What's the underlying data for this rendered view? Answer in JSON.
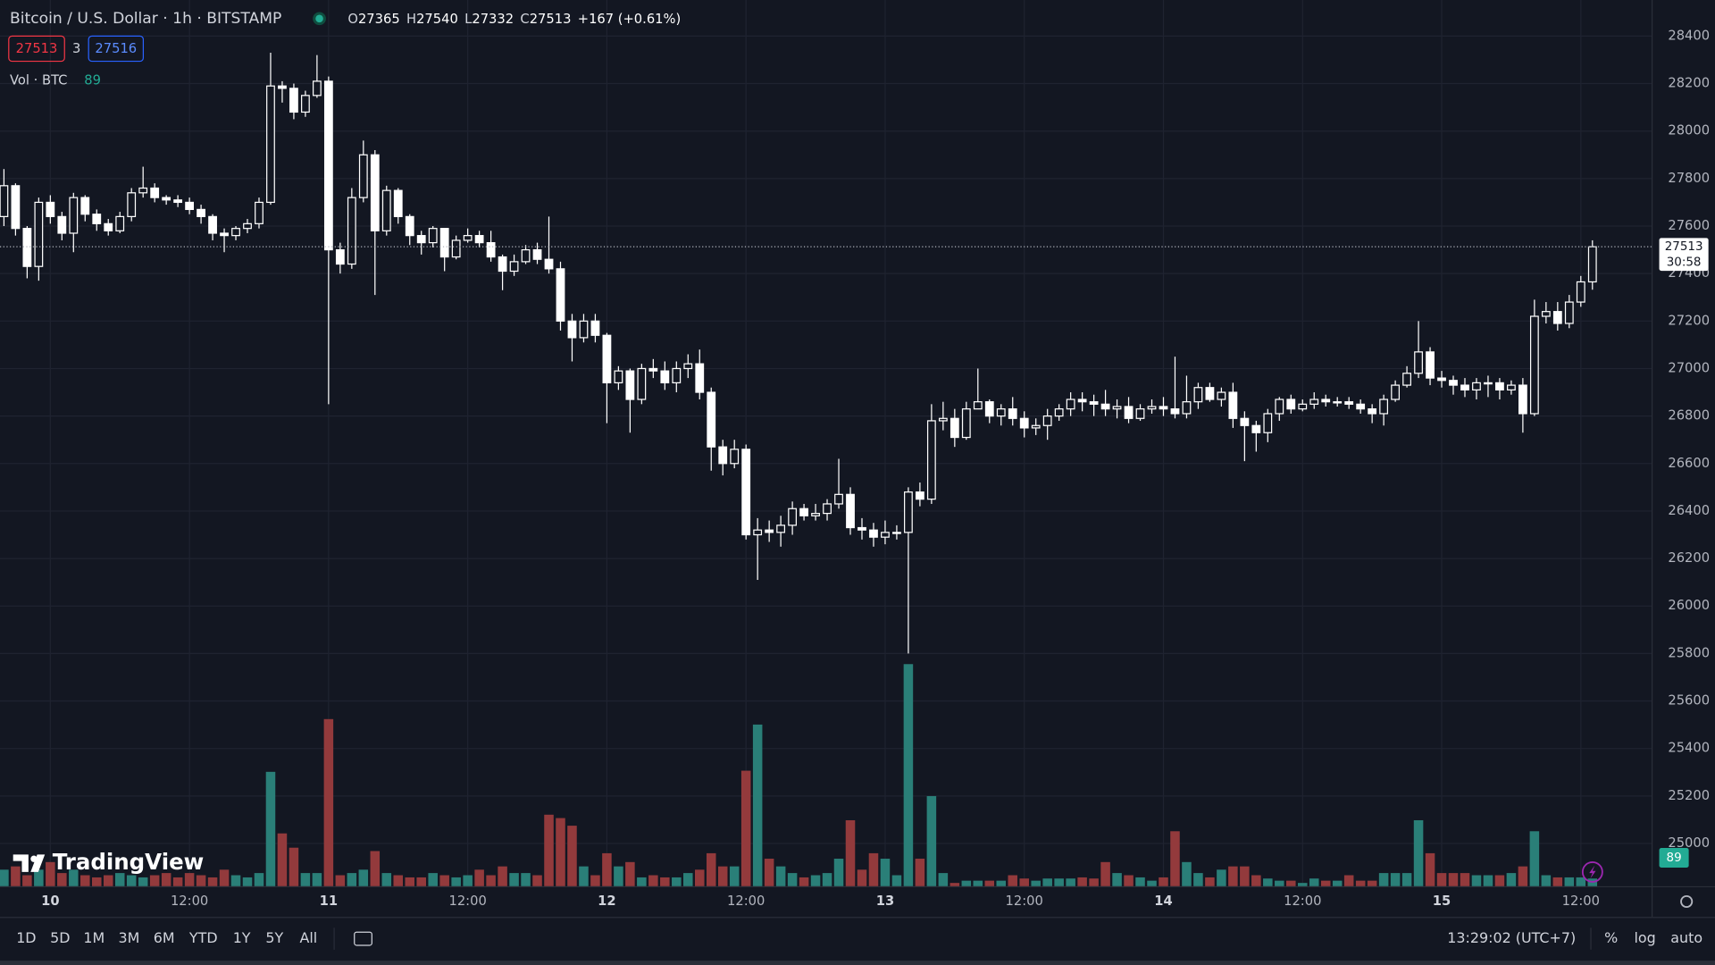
{
  "chart_data": {
    "type": "candlestick",
    "title": "Bitcoin / U.S. Dollar · 1h · BITSTAMP",
    "ohlc_labels": [
      "O",
      "H",
      "L",
      "C"
    ],
    "change": "+167 (+0.61%)",
    "bid": 27513,
    "spread": 3,
    "ask": 27516,
    "volume_label": "Vol · BTC",
    "countdown": "30:58",
    "candle_color": "#ffffff",
    "volume_up_color": "#2a7f78",
    "volume_down_color": "#933a3c",
    "grid": true,
    "xlim": [
      -0.34,
      142.1
    ],
    "xticks": [
      {
        "value": 4,
        "label": "10"
      },
      {
        "value": 16,
        "label": "12:00"
      },
      {
        "value": 28,
        "label": "11"
      },
      {
        "value": 40,
        "label": "12:00"
      },
      {
        "value": 52,
        "label": "12"
      },
      {
        "value": 64,
        "label": "12:00"
      },
      {
        "value": 76,
        "label": "13"
      },
      {
        "value": 88,
        "label": "12:00"
      },
      {
        "value": 100,
        "label": "14"
      },
      {
        "value": 112,
        "label": "12:00"
      },
      {
        "value": 124,
        "label": "15"
      },
      {
        "value": 136,
        "label": "12:00"
      }
    ],
    "ylim": [
      24820,
      28552
    ],
    "yticks": [
      25000,
      25200,
      25400,
      25600,
      25800,
      26000,
      26200,
      26400,
      26600,
      26800,
      27000,
      27200,
      27400,
      27600,
      27800,
      28000,
      28200,
      28400
    ],
    "open": [
      27640,
      27770,
      27590,
      27430,
      27700,
      27640,
      27570,
      27720,
      27650,
      27610,
      27580,
      27640,
      27740,
      27760,
      27720,
      27710,
      27700,
      27670,
      27640,
      27570,
      27560,
      27590,
      27610,
      27700,
      28190,
      28180,
      28080,
      28150,
      28210,
      27500,
      27440,
      27720,
      27900,
      27580,
      27750,
      27640,
      27560,
      27530,
      27590,
      27470,
      27540,
      27560,
      27530,
      27470,
      27410,
      27450,
      27500,
      27460,
      27420,
      27200,
      27130,
      27200,
      27140,
      26940,
      26990,
      26870,
      27000,
      26990,
      26940,
      27000,
      27020,
      26900,
      26670,
      26600,
      26660,
      26300,
      26320,
      26310,
      26340,
      26410,
      26380,
      26390,
      26430,
      26470,
      26330,
      26320,
      26290,
      26310,
      26310,
      26480,
      26450,
      26780,
      26790,
      26710,
      26830,
      26860,
      26800,
      26830,
      26790,
      26750,
      26760,
      26800,
      26830,
      26870,
      26860,
      26850,
      26830,
      26840,
      26790,
      26830,
      26840,
      26830,
      26810,
      26860,
      26920,
      26870,
      26900,
      26790,
      26760,
      26730,
      26810,
      26870,
      26830,
      26850,
      26870,
      26860,
      26860,
      26850,
      26830,
      26810,
      26870,
      26930,
      26980,
      27070,
      26960,
      26950,
      26930,
      26910,
      26940,
      26940,
      26910,
      26930,
      26810,
      27220,
      27240,
      27190,
      27280,
      27365
    ],
    "high": [
      27840,
      27780,
      27600,
      27720,
      27730,
      27660,
      27740,
      27730,
      27670,
      27630,
      27660,
      27760,
      27850,
      27780,
      27730,
      27730,
      27720,
      27690,
      27650,
      27590,
      27600,
      27630,
      27720,
      28330,
      28210,
      28200,
      28170,
      28320,
      28230,
      27530,
      27760,
      27960,
      27920,
      27770,
      27760,
      27650,
      27580,
      27600,
      27590,
      27560,
      27590,
      27580,
      27580,
      27480,
      27480,
      27520,
      27530,
      27640,
      27450,
      27230,
      27230,
      27230,
      27150,
      27010,
      27000,
      27020,
      27040,
      27030,
      27030,
      27060,
      27080,
      26920,
      26700,
      26700,
      26680,
      26370,
      26360,
      26380,
      26440,
      26430,
      26430,
      26450,
      26620,
      26500,
      26370,
      26350,
      26360,
      26340,
      26500,
      26520,
      26850,
      26860,
      26830,
      26860,
      27000,
      26870,
      26850,
      26880,
      26820,
      26790,
      26830,
      26850,
      26900,
      26900,
      26890,
      26910,
      26870,
      26880,
      26850,
      26870,
      26880,
      27050,
      26970,
      26940,
      26940,
      26920,
      26940,
      26820,
      26780,
      26830,
      26880,
      26890,
      26870,
      26900,
      26890,
      26880,
      26880,
      26870,
      26850,
      26890,
      26950,
      27010,
      27200,
      27090,
      26990,
      26970,
      26960,
      26960,
      26970,
      26960,
      26950,
      26960,
      27290,
      27280,
      27280,
      27310,
      27390,
      27540
    ],
    "low": [
      27600,
      27560,
      27380,
      27370,
      27610,
      27540,
      27490,
      27620,
      27580,
      27560,
      27570,
      27620,
      27720,
      27700,
      27690,
      27680,
      27650,
      27610,
      27540,
      27490,
      27540,
      27570,
      27590,
      27690,
      28120,
      28050,
      28060,
      28140,
      26850,
      27400,
      27420,
      27700,
      27310,
      27560,
      27610,
      27520,
      27480,
      27510,
      27410,
      27460,
      27530,
      27510,
      27450,
      27330,
      27390,
      27440,
      27440,
      27400,
      27160,
      27030,
      27110,
      27110,
      26770,
      26910,
      26730,
      26850,
      26960,
      26910,
      26900,
      26960,
      26870,
      26570,
      26550,
      26580,
      26280,
      26110,
      26270,
      26250,
      26300,
      26360,
      26360,
      26360,
      26410,
      26300,
      26280,
      26250,
      26260,
      26280,
      25800,
      26420,
      26430,
      26740,
      26670,
      26700,
      26830,
      26770,
      26760,
      26760,
      26710,
      26720,
      26700,
      26780,
      26800,
      26820,
      26800,
      26800,
      26790,
      26770,
      26780,
      26810,
      26800,
      26790,
      26790,
      26830,
      26860,
      26840,
      26750,
      26610,
      26650,
      26690,
      26780,
      26810,
      26820,
      26830,
      26840,
      26840,
      26830,
      26810,
      26770,
      26760,
      26860,
      26920,
      26960,
      26930,
      26920,
      26890,
      26880,
      26870,
      26880,
      26870,
      26890,
      26730,
      26800,
      27190,
      27160,
      27170,
      27260,
      27332
    ],
    "close": [
      27770,
      27590,
      27430,
      27700,
      27640,
      27570,
      27720,
      27650,
      27610,
      27580,
      27640,
      27740,
      27760,
      27720,
      27710,
      27700,
      27670,
      27640,
      27570,
      27560,
      27590,
      27610,
      27700,
      28190,
      28180,
      28080,
      28150,
      28210,
      27500,
      27440,
      27720,
      27900,
      27580,
      27750,
      27640,
      27560,
      27530,
      27590,
      27470,
      27540,
      27560,
      27530,
      27470,
      27410,
      27450,
      27500,
      27460,
      27420,
      27200,
      27130,
      27200,
      27140,
      26940,
      26990,
      26870,
      27000,
      26990,
      26940,
      27000,
      27020,
      26900,
      26670,
      26600,
      26660,
      26300,
      26320,
      26310,
      26340,
      26410,
      26380,
      26390,
      26430,
      26470,
      26330,
      26320,
      26290,
      26310,
      26310,
      26480,
      26450,
      26780,
      26790,
      26710,
      26830,
      26860,
      26800,
      26830,
      26790,
      26750,
      26760,
      26800,
      26830,
      26870,
      26860,
      26850,
      26830,
      26840,
      26790,
      26830,
      26840,
      26830,
      26810,
      26860,
      26920,
      26870,
      26900,
      26790,
      26760,
      26730,
      26810,
      26870,
      26830,
      26850,
      26870,
      26860,
      26860,
      26850,
      26830,
      26810,
      26870,
      26930,
      26980,
      27070,
      26960,
      26950,
      26930,
      26910,
      26940,
      26940,
      26910,
      26930,
      26810,
      27220,
      27240,
      27190,
      27280,
      27365,
      27513
    ],
    "volume": [
      191,
      229,
      127,
      191,
      279,
      152,
      191,
      127,
      102,
      127,
      152,
      127,
      102,
      127,
      152,
      102,
      152,
      127,
      102,
      191,
      127,
      102,
      152,
      1321,
      610,
      445,
      152,
      152,
      1930,
      127,
      152,
      191,
      406,
      152,
      127,
      102,
      102,
      152,
      127,
      102,
      127,
      191,
      127,
      229,
      152,
      152,
      127,
      826,
      787,
      699,
      229,
      127,
      381,
      229,
      279,
      102,
      127,
      102,
      102,
      152,
      191,
      381,
      229,
      229,
      1334,
      1867,
      318,
      229,
      152,
      102,
      127,
      152,
      318,
      762,
      191,
      381,
      318,
      127,
      2565,
      318,
      1041,
      152,
      38,
      64,
      64,
      64,
      64,
      127,
      89,
      64,
      89,
      89,
      89,
      102,
      89,
      279,
      152,
      127,
      102,
      64,
      102,
      635,
      279,
      152,
      102,
      191,
      229,
      229,
      127,
      89,
      64,
      64,
      38,
      89,
      64,
      64,
      127,
      64,
      64,
      152,
      152,
      152,
      762,
      381,
      152,
      152,
      152,
      127,
      127,
      127,
      152,
      229,
      635,
      127,
      102,
      102,
      102,
      89
    ]
  },
  "toolbar": {
    "ranges": [
      "1D",
      "5D",
      "1M",
      "3M",
      "6M",
      "YTD",
      "1Y",
      "5Y",
      "All"
    ],
    "clock": "13:29:02 (UTC+7)",
    "scale_options": [
      "%",
      "log",
      "auto"
    ]
  },
  "watermark": "TradingView"
}
